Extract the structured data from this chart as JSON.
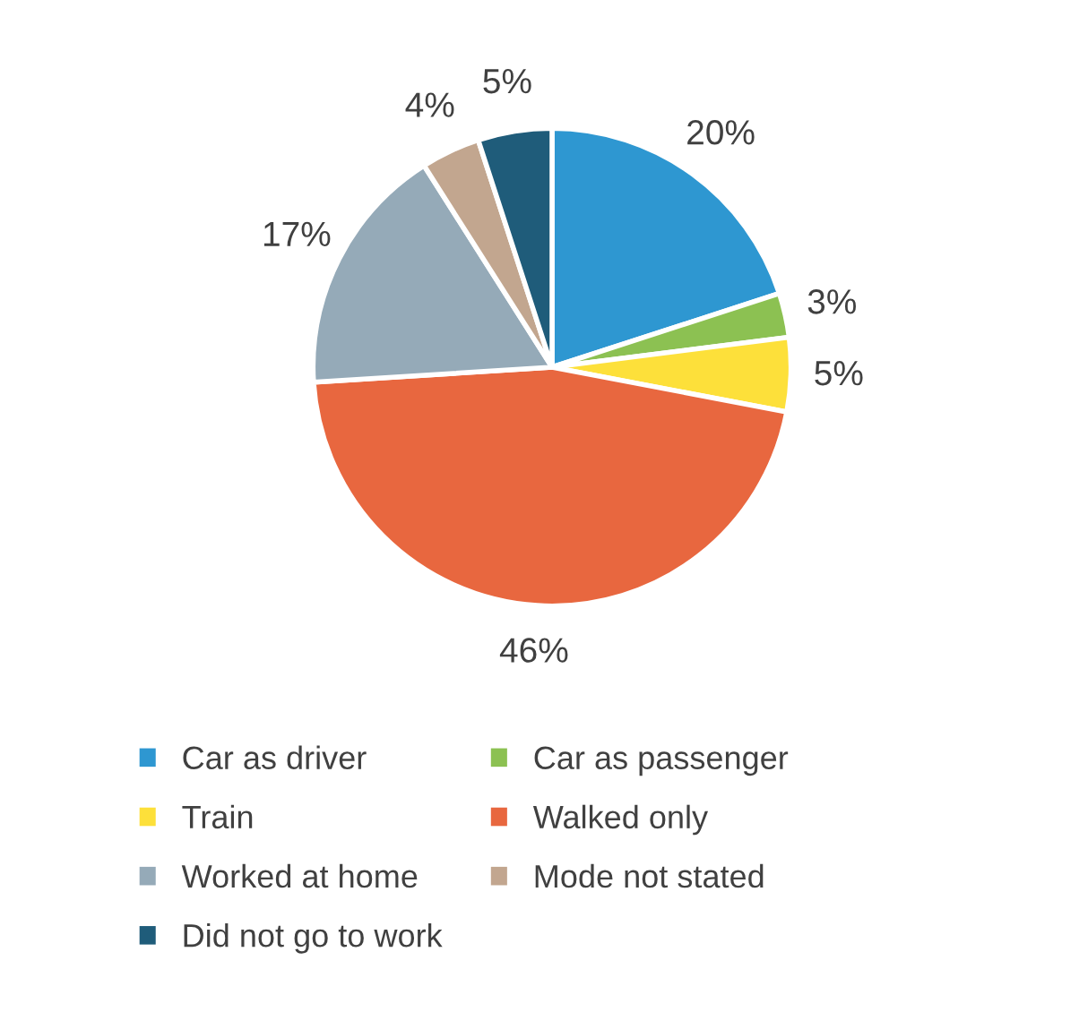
{
  "chart_data": {
    "type": "pie",
    "categories": [
      "Car as driver",
      "Car as passenger",
      "Train",
      "Walked only",
      "Worked at home",
      "Mode not stated",
      "Did not go to work"
    ],
    "values": [
      20,
      3,
      5,
      46,
      17,
      4,
      5
    ],
    "colors": [
      "#2e97d1",
      "#8cc152",
      "#fde03a",
      "#e8673f",
      "#95aab8",
      "#c2a68f",
      "#1f5c7a"
    ],
    "value_labels": [
      "20%",
      "3%",
      "5%",
      "46%",
      "17%",
      "4%",
      "5%"
    ],
    "legend": "bottom"
  }
}
